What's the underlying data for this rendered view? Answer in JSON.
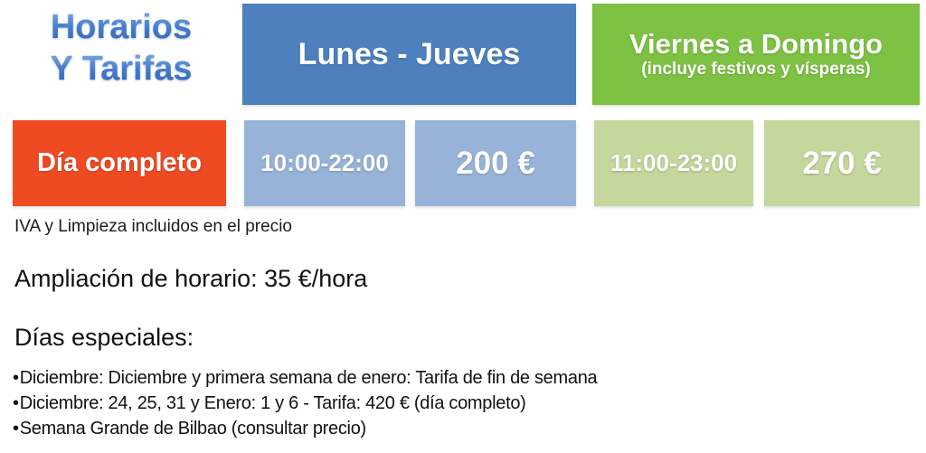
{
  "title": {
    "line1": "Horarios",
    "line2": "Y Tarifas"
  },
  "table": {
    "headers": [
      {
        "label": "Lunes - Jueves",
        "sub": ""
      },
      {
        "label": "Viernes a Domingo",
        "sub": "(incluye festivos y vísperas)"
      }
    ],
    "row_label": "Día completo",
    "cells": [
      {
        "group": "weekday",
        "type": "hours",
        "value": "10:00-22:00"
      },
      {
        "group": "weekday",
        "type": "price",
        "value": "200 €"
      },
      {
        "group": "weekend",
        "type": "hours",
        "value": "11:00-23:00"
      },
      {
        "group": "weekend",
        "type": "price",
        "value": "270 €"
      }
    ]
  },
  "notes": {
    "vat": "IVA y Limpieza incluidos en el precio",
    "extension": "Ampliación de horario: 35 €/hora",
    "special_days_title": "Días especiales:",
    "bullet": "•",
    "special_days": [
      "Diciembre: Diciembre y primera semana de enero: Tarifa de fin de semana",
      "Diciembre: 24, 25, 31 y Enero: 1 y 6 - Tarifa: 420 € (día completo)",
      "Semana Grande de Bilbao (consultar precio)"
    ]
  },
  "colors": {
    "header_blue": "#4d80bd",
    "header_green": "#7dc242",
    "cell_blue": "#97b4d8",
    "cell_green": "#c4d79c",
    "row_orange": "#ee4b23",
    "title_blue": "#3b74c4",
    "text": "#1a1a1a"
  }
}
